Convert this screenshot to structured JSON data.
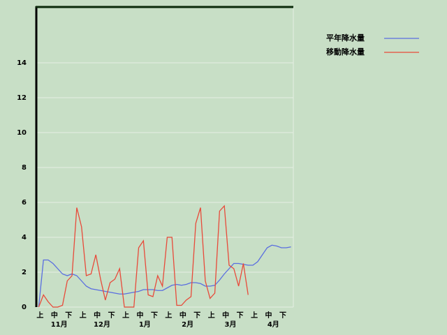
{
  "chart_data": {
    "type": "line",
    "categories": [
      "上",
      null,
      null,
      "中",
      null,
      null,
      "下",
      null,
      null,
      "上",
      null,
      null,
      "中",
      null,
      null,
      "下",
      null,
      null,
      "上",
      null,
      null,
      "中",
      null,
      null,
      "下",
      null,
      null,
      "上",
      null,
      null,
      "中",
      null,
      null,
      "下",
      null,
      null,
      "上",
      null,
      null,
      "中",
      null,
      null,
      "下",
      null,
      null,
      "上",
      null,
      null,
      "中",
      null,
      null,
      "下",
      null,
      null
    ],
    "x_groups": [
      "11月",
      "12月",
      "1月",
      "2月",
      "3月",
      "4月"
    ],
    "series": [
      {
        "name": "平年降水量",
        "color": "#5a6ee0",
        "values": [
          0,
          2.7,
          2.7,
          2.5,
          2.2,
          1.9,
          1.8,
          1.9,
          1.8,
          1.5,
          1.2,
          1.05,
          1.0,
          0.95,
          0.9,
          0.85,
          0.8,
          0.75,
          0.75,
          0.8,
          0.85,
          0.9,
          1.0,
          1.0,
          1.0,
          0.95,
          0.95,
          1.1,
          1.25,
          1.3,
          1.25,
          1.3,
          1.4,
          1.4,
          1.35,
          1.2,
          1.2,
          1.25,
          1.55,
          1.9,
          2.2,
          2.5,
          2.5,
          2.45,
          2.4,
          2.4,
          2.6,
          3.0,
          3.4,
          3.55,
          3.5,
          3.4,
          3.4,
          3.45
        ]
      },
      {
        "name": "移動降水量",
        "color": "#e84a3a",
        "values": [
          0,
          0.7,
          0.3,
          0,
          0,
          0.1,
          1.5,
          1.8,
          5.7,
          4.6,
          1.8,
          1.9,
          3.0,
          1.6,
          0.4,
          1.4,
          1.6,
          2.2,
          0,
          0,
          0,
          3.4,
          3.8,
          0.7,
          0.6,
          1.8,
          1.2,
          4.0,
          4.0,
          0.1,
          0.1,
          0.4,
          0.6,
          4.8,
          5.7,
          1.5,
          0.5,
          0.8,
          5.5,
          5.8,
          2.4,
          2.2,
          1.2,
          2.5,
          0.7,
          null,
          null,
          null,
          null,
          null,
          null,
          null,
          null,
          null
        ]
      }
    ],
    "ylim": [
      0,
      17.2
    ],
    "yticks": [
      0,
      2,
      4,
      6,
      8,
      10,
      12,
      14
    ],
    "grid": true
  }
}
